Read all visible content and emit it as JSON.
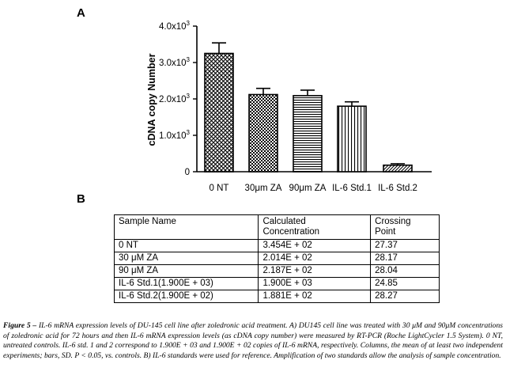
{
  "panel_a_label": "A",
  "panel_b_label": "B",
  "chart_data": {
    "type": "bar",
    "ylabel": "cDNA copy Number",
    "xlabel": "",
    "ylim": [
      0,
      4000
    ],
    "yticks": [
      {
        "value": 0,
        "label": "0"
      },
      {
        "value": 1000,
        "label": "1.0x10",
        "exp": "3"
      },
      {
        "value": 2000,
        "label": "2.0x10",
        "exp": "3"
      },
      {
        "value": 3000,
        "label": "3.0x10",
        "exp": "3"
      },
      {
        "value": 4000,
        "label": "4.0x10",
        "exp": "3"
      }
    ],
    "categories": [
      "0 NT",
      "30μm ZA",
      "90μm ZA",
      "IL-6 Std.1",
      "IL-6 Std.2"
    ],
    "values": [
      3250,
      2120,
      2090,
      1800,
      180
    ],
    "errors": [
      290,
      170,
      150,
      120,
      40
    ],
    "patterns": [
      "crosshatch",
      "checker",
      "hstripe",
      "vstripe",
      "diagonal"
    ],
    "grid": false
  },
  "table": {
    "headers": [
      [
        "Sample Name"
      ],
      [
        "Calculated",
        "Concentration"
      ],
      [
        "Crossing",
        "Point"
      ]
    ],
    "rows": [
      [
        "0 NT",
        "3.454E + 02",
        "27.37"
      ],
      [
        "30 μM ZA",
        "2.014E + 02",
        "28.17"
      ],
      [
        "90 μM ZA",
        "2.187E + 02",
        "28.04"
      ],
      [
        "IL-6 Std.1(1.900E + 03)",
        "1.900E + 03",
        "24.85"
      ],
      [
        "IL-6 Std.2(1.900E + 02)",
        "1.881E + 02",
        "28.27"
      ]
    ]
  },
  "caption": {
    "lead": "Figure 5 –",
    "text": " IL-6 mRNA expression levels of DU-145 cell line after zoledronic acid treatment. A) DU145 cell line was treated with 30 μM and 90μM concentrations of zoledronic acid for 72 hours and then IL-6 mRNA expression levels (as cDNA copy number) were measured by RT-PCR (Roche LightCycler 1.5 System). 0 NT, untreated controls. IL-6 std. 1 and 2 correspond to 1.900E + 03 and 1.900E + 02 copies of IL-6 mRNA, respectively. Columns, the mean of at least two independent experiments; bars, SD. P < 0.05, vs. controls. B) IL-6 standards were used for reference. Amplification of two standards allow the analysis of sample concentration."
  }
}
